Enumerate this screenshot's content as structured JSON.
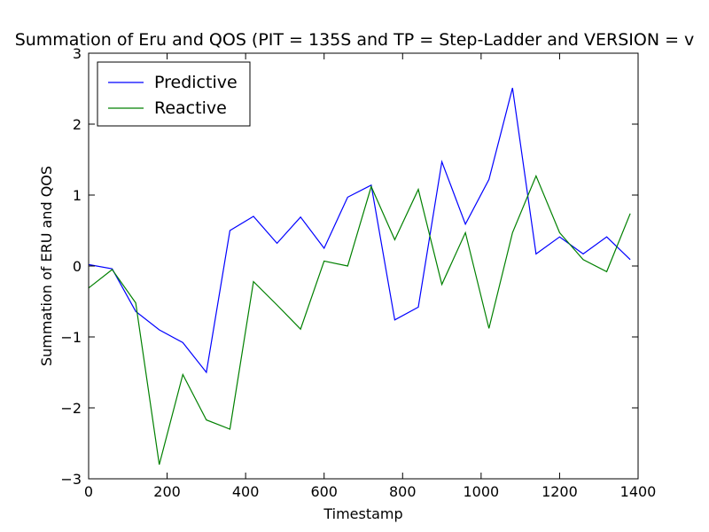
{
  "chart_data": {
    "type": "line",
    "title": "Summation of Eru and QOS (PIT = 135S and TP = Step-Ladder and VERSION = v",
    "xlabel": "Timestamp",
    "ylabel": "Summation of ERU and QOS",
    "xlim": [
      0,
      1400
    ],
    "ylim": [
      -3,
      3
    ],
    "xticks": [
      0,
      200,
      400,
      600,
      800,
      1000,
      1200,
      1400
    ],
    "yticks": [
      -3,
      -2,
      -1,
      0,
      1,
      2,
      3
    ],
    "xtick_labels": [
      "0",
      "200",
      "400",
      "600",
      "800",
      "1000",
      "1200",
      "1400"
    ],
    "ytick_labels": [
      "−3",
      "−2",
      "−1",
      "0",
      "1",
      "2",
      "3"
    ],
    "grid": false,
    "legend_position": "upper-left",
    "x": [
      0,
      60,
      120,
      180,
      240,
      300,
      360,
      420,
      480,
      540,
      600,
      660,
      720,
      780,
      840,
      900,
      960,
      1020,
      1080,
      1140,
      1200,
      1260,
      1320,
      1380
    ],
    "series": [
      {
        "name": "Predictive",
        "color": "#0000ff",
        "values": [
          0.02,
          -0.04,
          -0.64,
          -0.9,
          -1.08,
          -1.5,
          0.5,
          0.7,
          0.32,
          0.69,
          0.25,
          0.97,
          1.14,
          -0.76,
          -0.58,
          1.47,
          0.59,
          1.22,
          2.51,
          0.17,
          0.41,
          0.17,
          0.41,
          0.09
        ]
      },
      {
        "name": "Reactive",
        "color": "#008000",
        "values": [
          -0.31,
          -0.05,
          -0.52,
          -2.8,
          -1.53,
          -2.17,
          -2.3,
          -0.22,
          -0.55,
          -0.89,
          0.07,
          0.0,
          1.12,
          0.37,
          1.08,
          -0.26,
          0.47,
          -0.88,
          0.47,
          1.27,
          0.47,
          0.09,
          -0.08,
          0.74
        ]
      }
    ]
  }
}
